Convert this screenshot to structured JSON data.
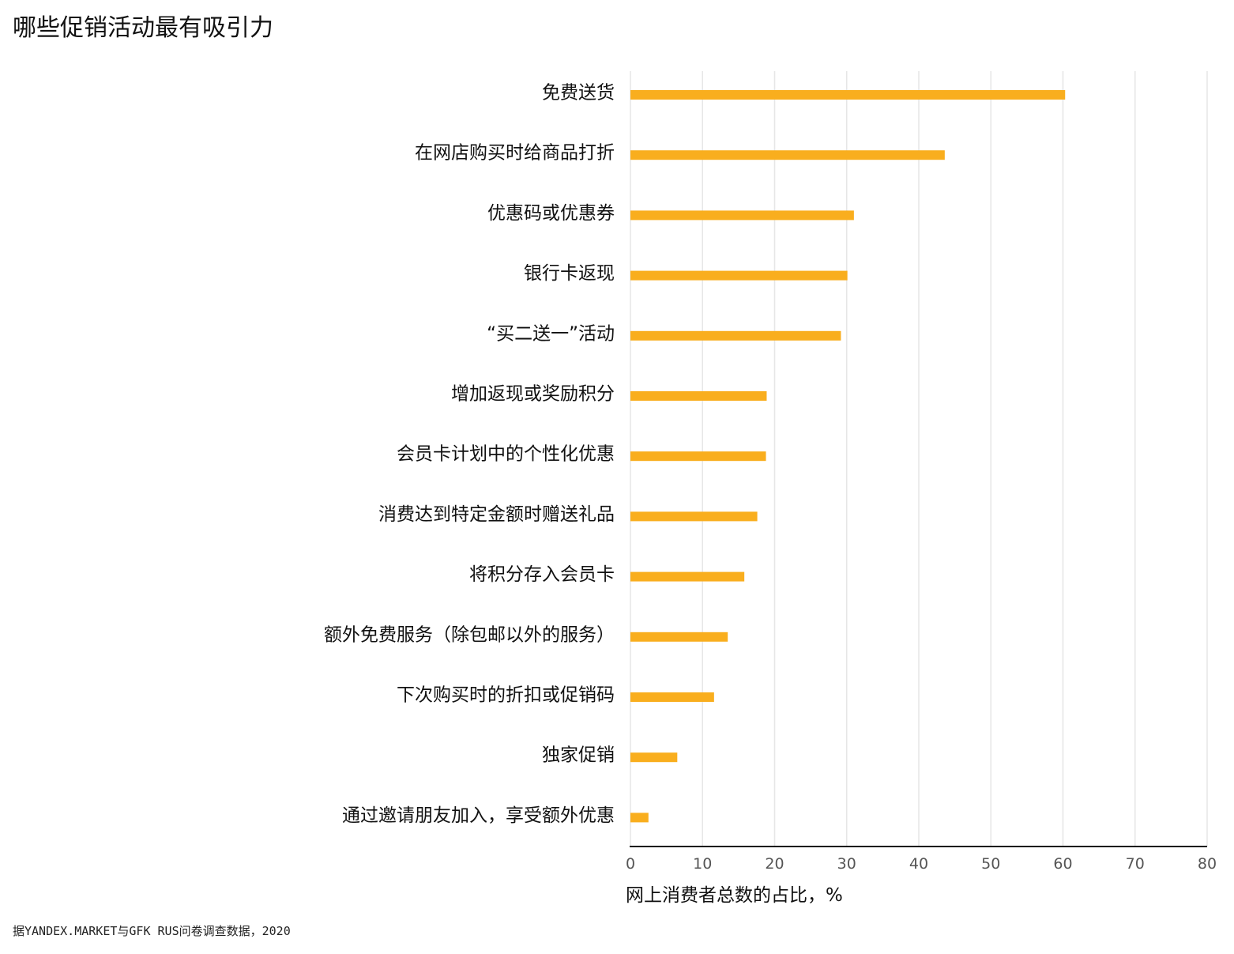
{
  "title": "哪些促销活动最有吸引力",
  "source": "据YANDEX.MARKET与GFK RUS问卷调查数据，2020",
  "colors": {
    "bar": "#F9AE1E",
    "grid": "#E6E6E6",
    "axis": "#111111"
  },
  "chart_data": {
    "type": "bar",
    "orientation": "horizontal",
    "title": "哪些促销活动最有吸引力",
    "xlabel": "网上消费者总数的占比，%",
    "ylabel": "",
    "xlim": [
      0,
      80
    ],
    "xticks": [
      0,
      10,
      20,
      30,
      40,
      50,
      60,
      70,
      80
    ],
    "grid": true,
    "categories": [
      "免费送货",
      "在网店购买时给商品打折",
      "优惠码或优惠券",
      "银行卡返现",
      "“买二送一”活动",
      "增加返现或奖励积分",
      "会员卡计划中的个性化优惠",
      "消费达到特定金额时赠送礼品",
      "将积分存入会员卡",
      "额外免费服务（除包邮以外的服务）",
      "下次购买时的折扣或促销码",
      "独家促销",
      "通过邀请朋友加入，享受额外优惠"
    ],
    "values": [
      60.3,
      43.6,
      31.0,
      30.1,
      29.2,
      18.9,
      18.8,
      17.6,
      15.8,
      13.5,
      11.6,
      6.5,
      2.5
    ]
  }
}
